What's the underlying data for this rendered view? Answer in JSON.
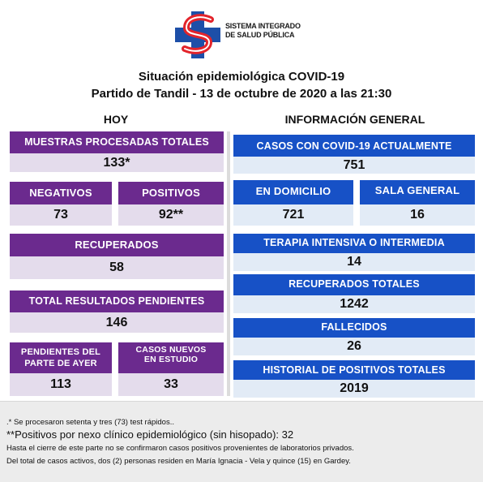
{
  "header": {
    "logo_text_line1": "SISTEMA INTEGRADO",
    "logo_text_line2": "DE SALUD PÚBLICA",
    "title_line1": "Situación epidemiológica COVID-19",
    "title_line2": "Partido de Tandil - 13 de octubre de 2020 a las 21:30",
    "colors": {
      "logo_red": "#e3242b",
      "logo_blue": "#1d4fa8"
    }
  },
  "hoy": {
    "heading": "HOY",
    "muestras": {
      "label": "MUESTRAS PROCESADAS TOTALES",
      "value": "133*"
    },
    "negativos": {
      "label": "NEGATIVOS",
      "value": "73"
    },
    "positivos": {
      "label": "POSITIVOS",
      "value": "92**"
    },
    "recuperados": {
      "label": "RECUPERADOS",
      "value": "58"
    },
    "pendientes_total": {
      "label": "TOTAL RESULTADOS PENDIENTES",
      "value": "146"
    },
    "pendientes_ayer": {
      "label_line1": "PENDIENTES DEL",
      "label_line2": "PARTE DE  AYER",
      "value": "113"
    },
    "casos_nuevos": {
      "label_line1": "CASOS NUEVOS",
      "label_line2": "EN ESTUDIO",
      "value": "33"
    }
  },
  "general": {
    "heading": "INFORMACIÓN GENERAL",
    "activos": {
      "label": "CASOS CON COVID-19 ACTUALMENTE",
      "value": "751"
    },
    "domicilio": {
      "label": "EN DOMICILIO",
      "value": "721"
    },
    "sala": {
      "label": "SALA GENERAL",
      "value": "16"
    },
    "terapia": {
      "label": "TERAPIA INTENSIVA O INTERMEDIA",
      "value": "14"
    },
    "recuperados_totales": {
      "label": "RECUPERADOS TOTALES",
      "value": "1242"
    },
    "fallecidos": {
      "label": "FALLECIDOS",
      "value": "26"
    },
    "historial": {
      "label": "HISTORIAL DE POSITIVOS TOTALES",
      "value": "2019"
    }
  },
  "footer": {
    "note1": ".* Se procesaron setenta y tres (73) test rápidos..",
    "note2": "**Positivos por nexo clínico epidemiológico (sin hisopado): 32",
    "note3": "Hasta el cierre de este parte no se confirmaron casos positivos provenientes de laboratorios privados.",
    "note4": "Del total de casos activos, dos (2) personas residen en María Ignacia - Vela y quince  (15) en Gardey."
  },
  "colors": {
    "purple_label": "#6b2a8e",
    "purple_value": "#e4dcec",
    "blue_label": "#1751c6",
    "blue_value": "#e2ebf6"
  }
}
